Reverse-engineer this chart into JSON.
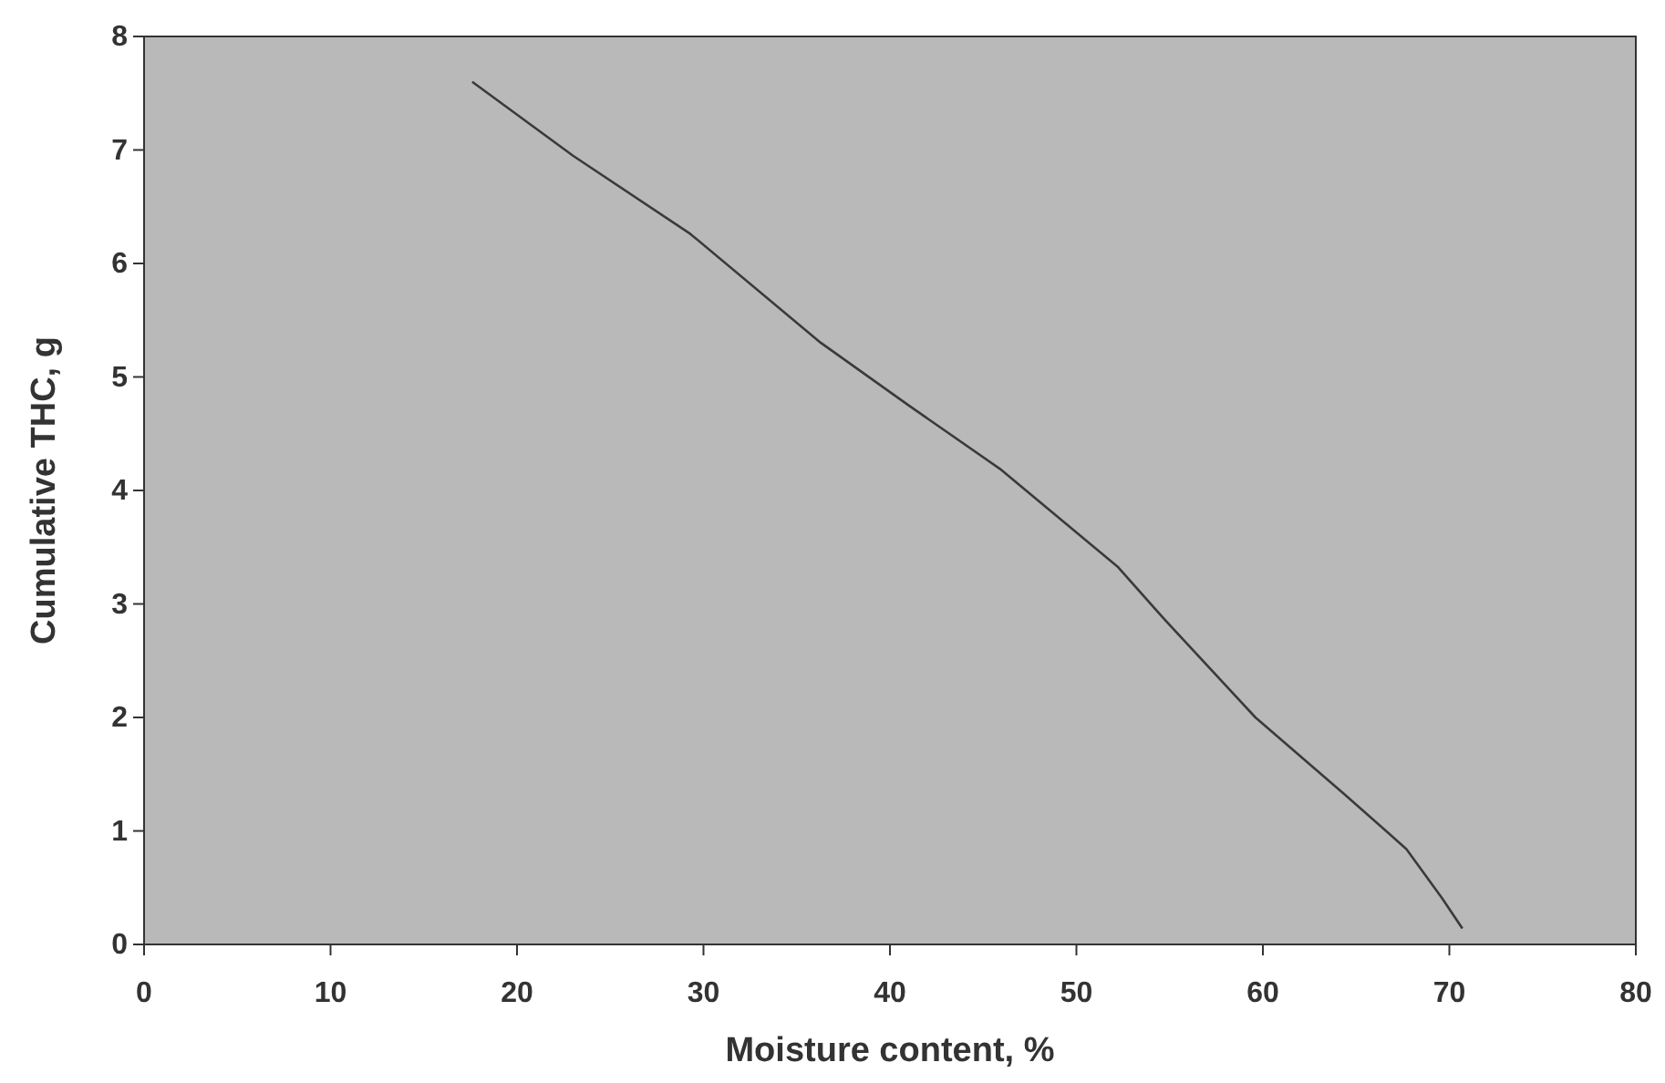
{
  "chart_data": {
    "type": "line",
    "xlabel": "Moisture content, %",
    "ylabel": "Cumulative THC, g",
    "x": [
      17.6,
      23,
      29.3,
      36.3,
      41,
      45.9,
      52.2,
      54.8,
      59.6,
      64.4,
      67.7,
      69.6,
      70.7
    ],
    "series": [
      {
        "color": "#3a3a3a",
        "values": [
          7.6,
          6.95,
          6.26,
          5.3,
          4.75,
          4.19,
          3.33,
          2.85,
          2.0,
          1.32,
          0.84,
          0.41,
          0.14
        ]
      }
    ],
    "xlim": [
      0,
      80
    ],
    "xticks": [
      0,
      10,
      20,
      30,
      40,
      50,
      60,
      70,
      80
    ],
    "ylim": [
      0,
      8
    ],
    "yticks": [
      0,
      1,
      2,
      3,
      4,
      5,
      6,
      7,
      8
    ],
    "grid": false,
    "marker": "none",
    "line_style": "solid"
  }
}
